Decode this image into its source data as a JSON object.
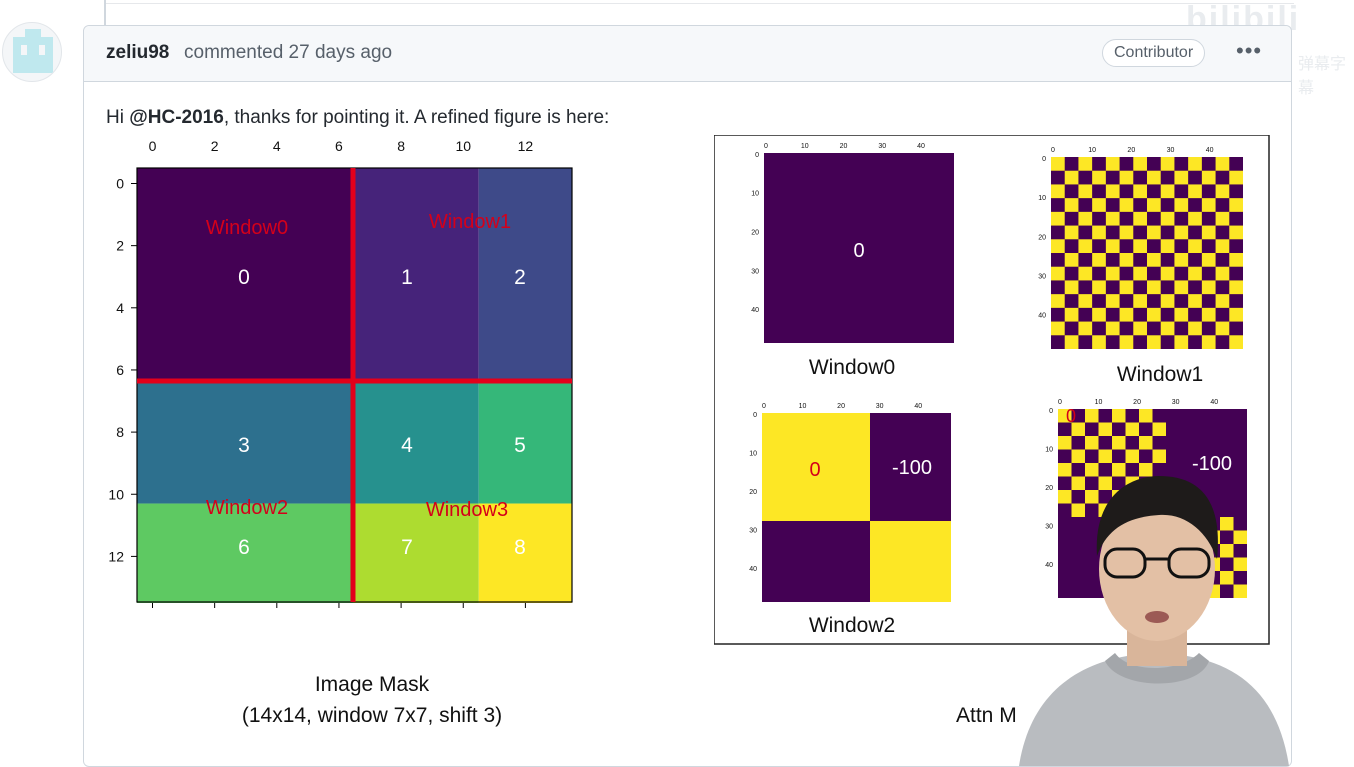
{
  "comment": {
    "author": "zeliu98",
    "action": "commented 27 days ago",
    "role_badge": "Contributor",
    "menu_glyph": "•••",
    "body_prefix": "Hi ",
    "mention": "@HC-2016",
    "body_suffix": ", thanks for pointing it. A refined figure is here:"
  },
  "image_mask": {
    "caption_line1": "Image Mask",
    "caption_line2": "(14x14, window 7x7, shift 3)",
    "x_ticks": [
      "0",
      "2",
      "4",
      "6",
      "8",
      "10",
      "12"
    ],
    "y_ticks": [
      "0",
      "2",
      "4",
      "6",
      "8",
      "10",
      "12"
    ],
    "region_labels": [
      "0",
      "1",
      "2",
      "3",
      "4",
      "5",
      "6",
      "7",
      "8"
    ],
    "window_labels": [
      "Window0",
      "Window1",
      "Window2",
      "Window3"
    ],
    "colors": {
      "r0": "#440154",
      "r1": "#46237a",
      "r2": "#3e4a89",
      "r3": "#2d708e",
      "r4": "#26918e",
      "r5": "#35b779",
      "r6": "#5ec962",
      "r7": "#addc30",
      "r8": "#fde725",
      "divider": "#e3001b"
    }
  },
  "attn_mask": {
    "caption": "Attn M",
    "panel_ticks": [
      "0",
      "10",
      "20",
      "30",
      "40"
    ],
    "panels": [
      {
        "title": "Window0",
        "values": [
          "0"
        ]
      },
      {
        "title": "Window1",
        "values": []
      },
      {
        "title": "Window2",
        "values": [
          "0",
          "-100"
        ]
      },
      {
        "title": "",
        "values": [
          "0",
          "-100"
        ]
      }
    ],
    "colors": {
      "purple": "#440154",
      "yellow": "#fde725"
    }
  },
  "watermark": {
    "text": "bilibili",
    "sub": "弹幕字幕"
  }
}
